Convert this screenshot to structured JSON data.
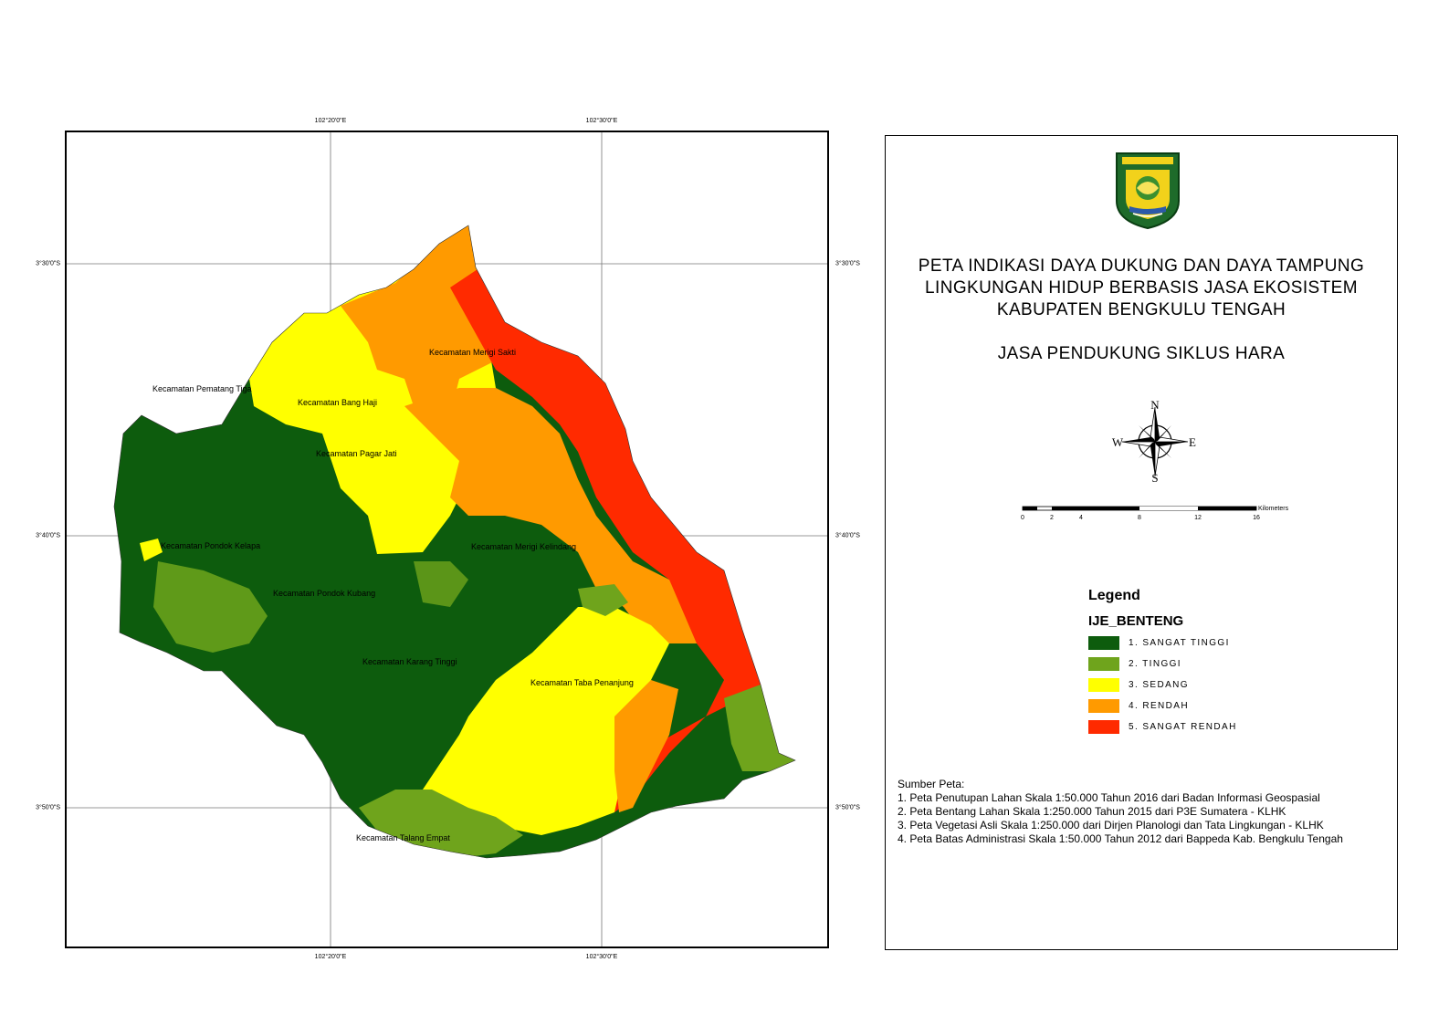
{
  "map": {
    "graticule": {
      "top": [
        "102°20'0\"E",
        "102°30'0\"E"
      ],
      "bottom": [
        "102°20'0\"E",
        "102°30'0\"E"
      ],
      "left": [
        "3°30'0\"S",
        "3°40'0\"S",
        "3°50'0\"S"
      ],
      "right": [
        "3°30'0\"S",
        "3°40'0\"S",
        "3°50'0\"S"
      ]
    },
    "labels": [
      "Kecamatan Merigi Sakti",
      "Kecamatan Pematang Tiga",
      "Kecamatan Bang Haji",
      "Kecamatan Pagar Jati",
      "Kecamatan Pondok Kelapa",
      "Kecamatan Merigi Kelindang",
      "Kecamatan Pondok Kubang",
      "Kecamatan Karang Tinggi",
      "Kecamatan Taba Penanjung",
      "Kecamatan Talang Empat"
    ]
  },
  "title": {
    "line1": "PETA INDIKASI DAYA DUKUNG DAN DAYA TAMPUNG",
    "line2": "LINGKUNGAN HIDUP BERBASIS JASA EKOSISTEM",
    "line3": "KABUPATEN BENGKULU TENGAH",
    "subtitle": "JASA PENDUKUNG SIKLUS HARA"
  },
  "emblem": {
    "icon": "bengkulu-tengah-emblem-icon",
    "colors": [
      "#1e6b2a",
      "#f2d21b",
      "#2d5aa8"
    ]
  },
  "compass": {
    "icon": "compass-rose-icon",
    "n": "N",
    "s": "S",
    "e": "E",
    "w": "W"
  },
  "scalebar": {
    "unit": "Kilometers",
    "ticks": [
      "0",
      "2",
      "4",
      "8",
      "12",
      "16"
    ]
  },
  "legend": {
    "heading": "Legend",
    "layer": "IJE_BENTENG",
    "items": [
      {
        "label": "1. SANGAT TINGGI",
        "color": "#0d5c0d"
      },
      {
        "label": "2. TINGGI",
        "color": "#6fa41c"
      },
      {
        "label": "3. SEDANG",
        "color": "#ffff00"
      },
      {
        "label": "4. RENDAH",
        "color": "#ff9a00"
      },
      {
        "label": "5. SANGAT RENDAH",
        "color": "#ff2a00"
      }
    ]
  },
  "sources": {
    "heading": "Sumber Peta:",
    "items": [
      "1. Peta Penutupan Lahan Skala 1:50.000 Tahun 2016 dari Badan Informasi Geospasial",
      "2. Peta Bentang Lahan Skala 1:250.000 Tahun 2015 dari  P3E Sumatera - KLHK",
      "3. Peta Vegetasi Asli Skala 1:250.000 dari Dirjen Planologi dan Tata Lingkungan - KLHK",
      "4. Peta Batas Administrasi Skala 1:50.000 Tahun 2012 dari Bappeda Kab. Bengkulu Tengah"
    ]
  }
}
